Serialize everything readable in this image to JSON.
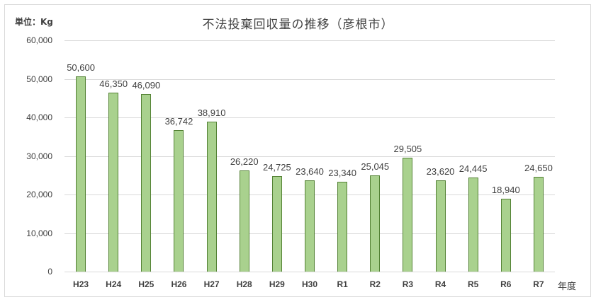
{
  "chart_data": {
    "type": "bar",
    "title": "不法投棄回収量の推移（彦根市）",
    "unit_label": "単位：Kg",
    "xlabel": "年度",
    "ylabel": "単位：Kg",
    "categories": [
      "H23",
      "H24",
      "H25",
      "H26",
      "H27",
      "H28",
      "H29",
      "H30",
      "R1",
      "R2",
      "R3",
      "R4",
      "R5",
      "R6",
      "R7"
    ],
    "values": [
      50600,
      46350,
      46090,
      36742,
      38910,
      26220,
      24725,
      23640,
      23340,
      25045,
      29505,
      23620,
      24445,
      18940,
      24650
    ],
    "data_labels": [
      "50,600",
      "46,350",
      "46,090",
      "36,742",
      "38,910",
      "26,220",
      "24,725",
      "23,640",
      "23,340",
      "25,045",
      "29,505",
      "23,620",
      "24,445",
      "18,940",
      "24,650"
    ],
    "ylim": [
      0,
      60000
    ],
    "yticks": [
      0,
      10000,
      20000,
      30000,
      40000,
      50000,
      60000
    ],
    "ytick_labels": [
      "0",
      "10,000",
      "20,000",
      "30,000",
      "40,000",
      "50,000",
      "60,000"
    ],
    "grid": true,
    "legend": "none",
    "colors": {
      "bar_fill": "#a9d18e",
      "bar_border": "#548235",
      "grid": "#d9d9d9"
    }
  }
}
